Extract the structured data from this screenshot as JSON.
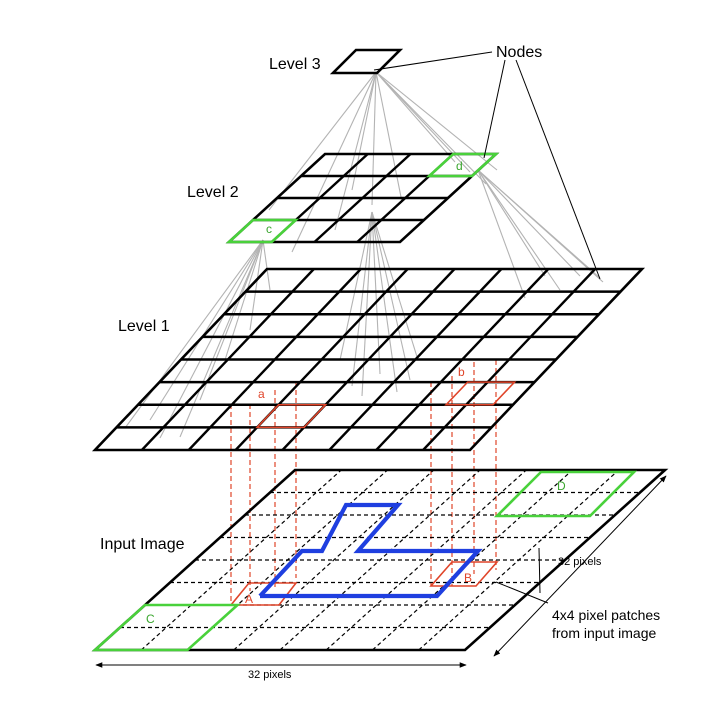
{
  "labels": {
    "level3": "Level 3",
    "level2": "Level 2",
    "level1": "Level 1",
    "input": "Input Image",
    "nodes": "Nodes",
    "pixels_right": "32 pixels",
    "pixels_bottom": "32 pixels",
    "patches_line1": "4x4 pixel patches",
    "patches_line2": "from input image"
  },
  "cell_tags": {
    "a": "a",
    "b": "b",
    "c": "c",
    "d": "d",
    "A": "A",
    "B": "B",
    "C": "C",
    "D": "D"
  },
  "colors": {
    "grid": "#000000",
    "link": "#b3b3b3",
    "red": "#e0452a",
    "green": "#49d13b",
    "blue": "#1f3fe0"
  },
  "grids": {
    "level2": {
      "rows": 4,
      "cols": 4
    },
    "level1": {
      "rows": 8,
      "cols": 8
    },
    "input": {
      "rows": 8,
      "cols": 8
    }
  }
}
